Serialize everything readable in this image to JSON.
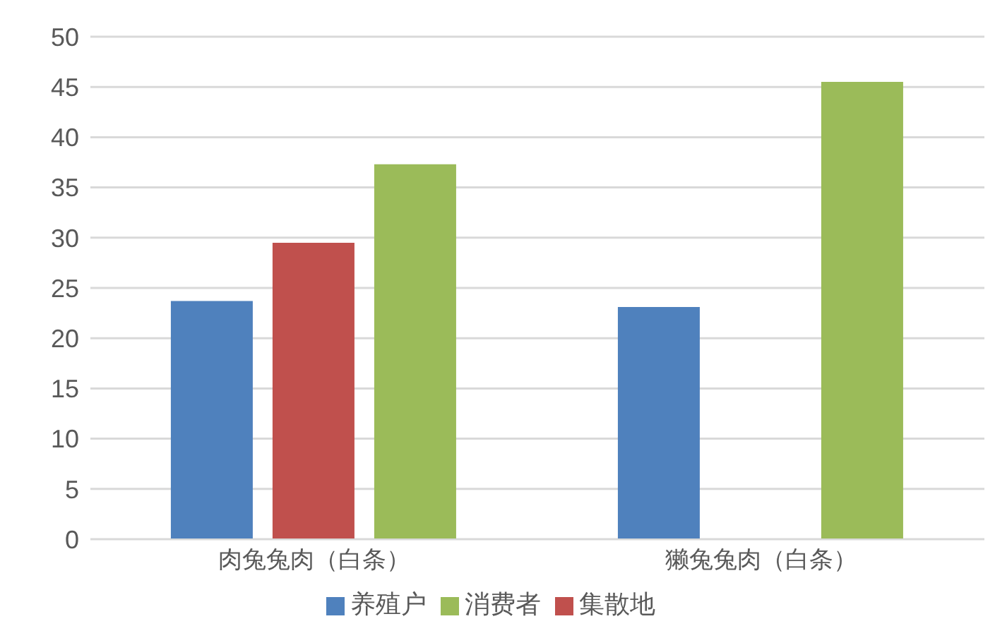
{
  "chart_data": {
    "type": "bar",
    "categories": [
      "肉兔兔肉（白条）",
      "獭兔兔肉（白条）"
    ],
    "series": [
      {
        "name": "养殖户",
        "color": "#4f81bd",
        "values": [
          23.7,
          23.1
        ]
      },
      {
        "name": "集散地",
        "color": "#c0504d",
        "values": [
          29.5,
          null
        ]
      },
      {
        "name": "消费者",
        "color": "#9bbb59",
        "values": [
          37.3,
          45.5
        ]
      }
    ],
    "ylim": [
      0,
      50
    ],
    "yticks": [
      0,
      5,
      10,
      15,
      20,
      25,
      30,
      35,
      40,
      45,
      50
    ],
    "grid": "y",
    "legend": "bottom"
  }
}
